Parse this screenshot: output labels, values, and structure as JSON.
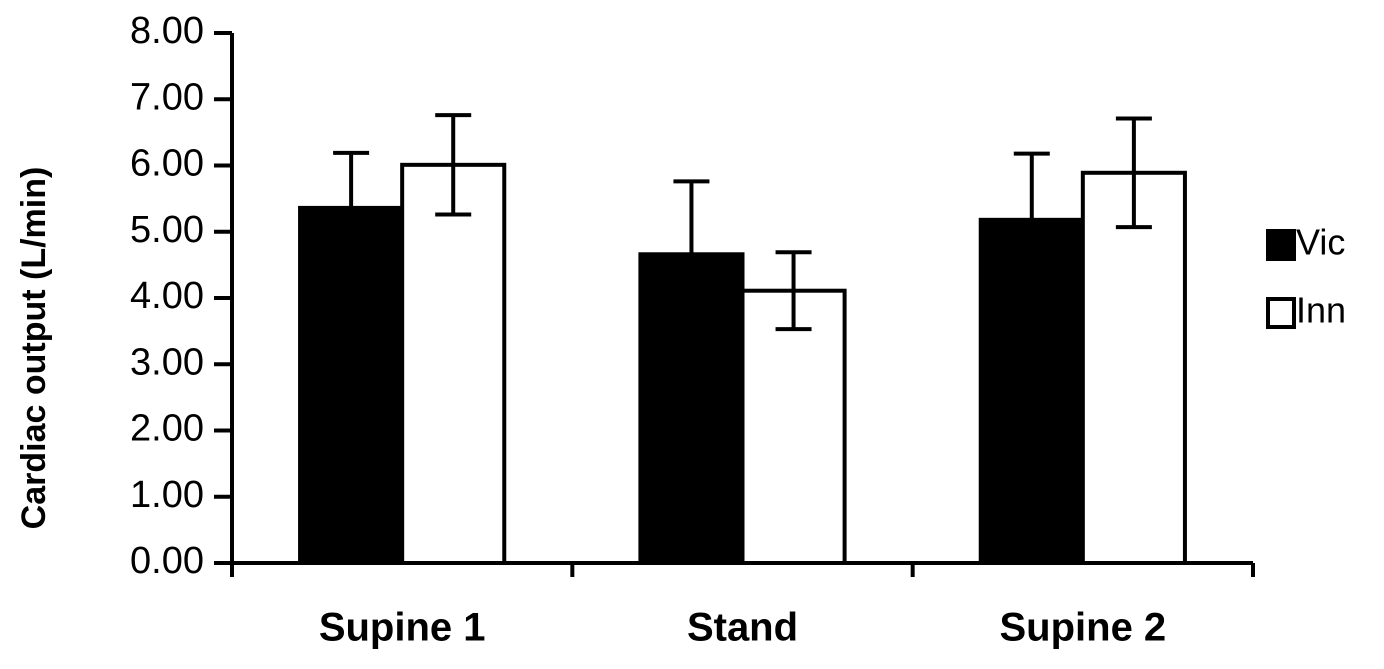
{
  "chart_data": {
    "type": "bar",
    "y_label": "Cardiac output (L/min)",
    "categories": [
      "Supine 1",
      "Stand",
      "Supine 2"
    ],
    "series": [
      {
        "name": "Vic",
        "color": "#000000",
        "values": [
          5.36,
          4.66,
          5.18
        ],
        "errors": [
          0.83,
          1.1,
          1.0
        ]
      },
      {
        "name": "Inn",
        "color": "#ffffff",
        "values": [
          6.01,
          4.11,
          5.89
        ],
        "errors": [
          0.75,
          0.58,
          0.82
        ]
      }
    ],
    "ylim": [
      0,
      8
    ],
    "yticks": [
      {
        "value": 0,
        "label": "0.00"
      },
      {
        "value": 1,
        "label": "1.00"
      },
      {
        "value": 2,
        "label": "2.00"
      },
      {
        "value": 3,
        "label": "3.00"
      },
      {
        "value": 4,
        "label": "4.00"
      },
      {
        "value": 5,
        "label": "5.00"
      },
      {
        "value": 6,
        "label": "6.00"
      },
      {
        "value": 7,
        "label": "7.00"
      },
      {
        "value": 8,
        "label": "8.00"
      }
    ],
    "grid": false,
    "legend": "right"
  }
}
